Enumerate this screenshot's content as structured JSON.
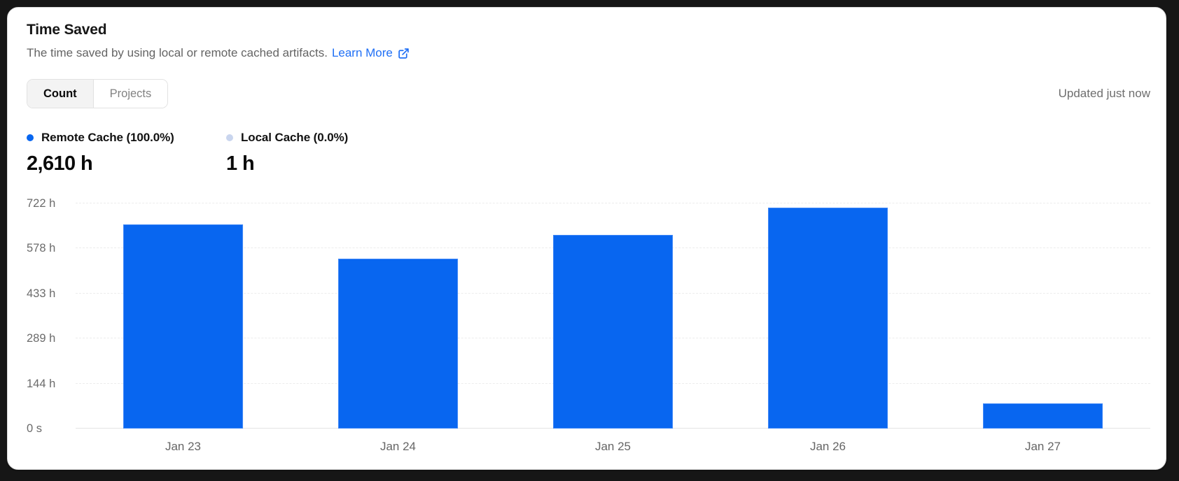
{
  "card": {
    "title": "Time Saved",
    "subtitle": "The time saved by using local or remote cached artifacts.",
    "learn_more_label": "Learn More",
    "updated": "Updated just now",
    "tabs": [
      {
        "label": "Count",
        "active": true
      },
      {
        "label": "Projects",
        "active": false
      }
    ]
  },
  "legend": [
    {
      "label": "Remote Cache (100.0%)",
      "value": "2,610 h"
    },
    {
      "label": "Local Cache (0.0%)",
      "value": "1 h"
    }
  ],
  "chart_data": {
    "type": "bar",
    "title": "Time Saved",
    "categories": [
      "Jan 23",
      "Jan 24",
      "Jan 25",
      "Jan 26",
      "Jan 27"
    ],
    "series": [
      {
        "name": "Remote Cache",
        "values": [
          655,
          545,
          622,
          708,
          80
        ],
        "unit": "h"
      },
      {
        "name": "Local Cache",
        "values": [
          0,
          0,
          0,
          0,
          0
        ],
        "unit": "h"
      }
    ],
    "totals": {
      "remote_cache": "2,610 h",
      "local_cache": "1 h"
    },
    "y_axis": {
      "max": 722,
      "ticks": [
        {
          "label": "0 s",
          "value": 0
        },
        {
          "label": "144 h",
          "value": 144
        },
        {
          "label": "289 h",
          "value": 289
        },
        {
          "label": "433 h",
          "value": 433
        },
        {
          "label": "578 h",
          "value": 578
        },
        {
          "label": "722 h",
          "value": 722
        }
      ]
    },
    "grid": "horizontal-dashed",
    "legend_position": "top-left"
  },
  "colors": {
    "bar_blue": "#0866f0",
    "local_dot": "#c9d5ee",
    "link_blue": "#1f6ff5",
    "background": "#161616",
    "card_bg": "#ffffff"
  }
}
